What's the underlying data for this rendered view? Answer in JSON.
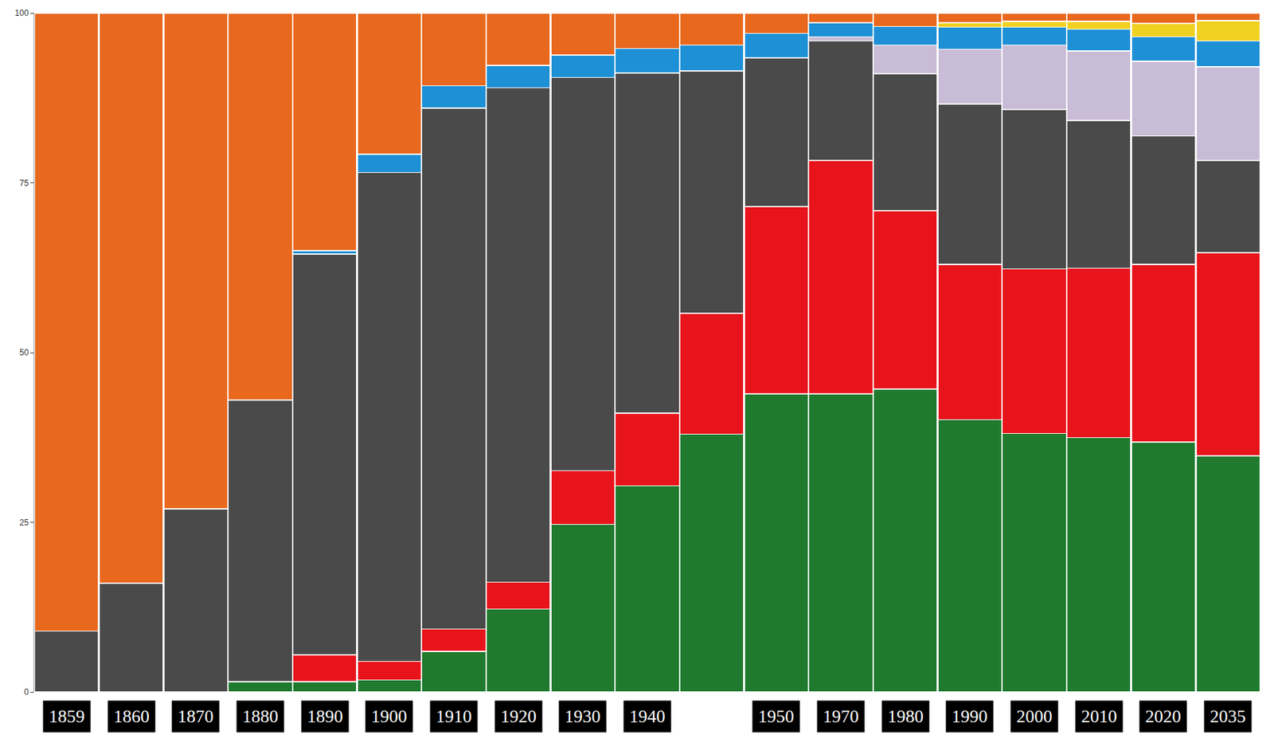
{
  "chart_data": {
    "type": "bar",
    "stacked": true,
    "categories": [
      "1859",
      "1860",
      "1870",
      "1880",
      "1890",
      "1900",
      "1910",
      "1920",
      "1930",
      "1940",
      null,
      "1950",
      "1970",
      "1980",
      "1990",
      "2000",
      "2010",
      "2020",
      "2035"
    ],
    "ylim": [
      0,
      100
    ],
    "yticks": [
      0,
      25,
      50,
      75,
      100
    ],
    "grid": false,
    "series": [
      {
        "color": "#1f7a2e",
        "values": [
          0,
          0,
          0,
          1.5,
          1.5,
          1.8,
          6,
          12.2,
          24.7,
          30.4,
          38,
          43.9,
          43.9,
          44.6,
          40.1,
          38.1,
          37.5,
          36.8,
          34.8
        ]
      },
      {
        "color": "#e8141c",
        "values": [
          0,
          0,
          0,
          0,
          4,
          2.7,
          3.3,
          4,
          7.9,
          10.7,
          17.8,
          27.6,
          34.4,
          26.3,
          22.9,
          24.2,
          24.9,
          26.2,
          29.9
        ]
      },
      {
        "color": "#4a4a4a",
        "values": [
          9,
          16,
          27,
          41.5,
          59,
          72,
          76.7,
          72.8,
          57.9,
          50.1,
          35.7,
          21.9,
          17.6,
          20.2,
          23.6,
          23.5,
          21.8,
          18.9,
          13.6
        ]
      },
      {
        "color": "#c9bcd6",
        "values": [
          0,
          0,
          0,
          0,
          0,
          0,
          0,
          0,
          0,
          0,
          0,
          0,
          0.6,
          4.2,
          8.1,
          9.5,
          10.2,
          11,
          13.8
        ]
      },
      {
        "color": "#1e90d6",
        "values": [
          0,
          0,
          0,
          0,
          0.5,
          2.7,
          3.3,
          3.3,
          3.3,
          3.6,
          3.8,
          3.6,
          2.1,
          2.7,
          3.2,
          2.6,
          3.2,
          3.6,
          3.8
        ]
      },
      {
        "color": "#f0d020",
        "values": [
          0,
          0,
          0,
          0,
          0,
          0,
          0,
          0,
          0,
          0,
          0,
          0,
          0,
          0,
          0.7,
          0.9,
          1.2,
          2,
          3
        ]
      },
      {
        "color": "#e8681e",
        "values": [
          91,
          84,
          73,
          57,
          35,
          20.8,
          10.7,
          7.7,
          6.2,
          5.2,
          4.7,
          3,
          1.4,
          2,
          1.4,
          1.2,
          1.2,
          1.5,
          1.1
        ]
      }
    ]
  }
}
